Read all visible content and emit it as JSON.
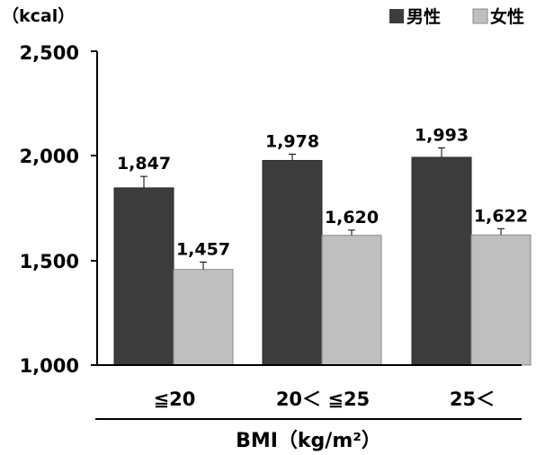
{
  "chart_data": {
    "type": "bar",
    "unit_label": "（kcal）",
    "xlabel": "BMI（kg/m²）",
    "categories": [
      "≦20",
      "20＜ ≦25",
      "25＜"
    ],
    "ylim": [
      1000,
      2500
    ],
    "yticks": [
      1000,
      1500,
      2000,
      2500
    ],
    "ytick_labels": [
      "1,000",
      "1,500",
      "2,000",
      "2,500"
    ],
    "legend_position": "top-right",
    "grid": false,
    "series": [
      {
        "name": "男性",
        "color": "#3c3c3c",
        "values": [
          1847,
          1978,
          1993
        ],
        "value_labels": [
          "1,847",
          "1,978",
          "1,993"
        ],
        "error": [
          55,
          30,
          45
        ]
      },
      {
        "name": "女性",
        "color": "#bfbfbf",
        "values": [
          1457,
          1620,
          1622
        ],
        "value_labels": [
          "1,457",
          "1,620",
          "1,622"
        ],
        "error": [
          35,
          25,
          30
        ]
      }
    ]
  }
}
